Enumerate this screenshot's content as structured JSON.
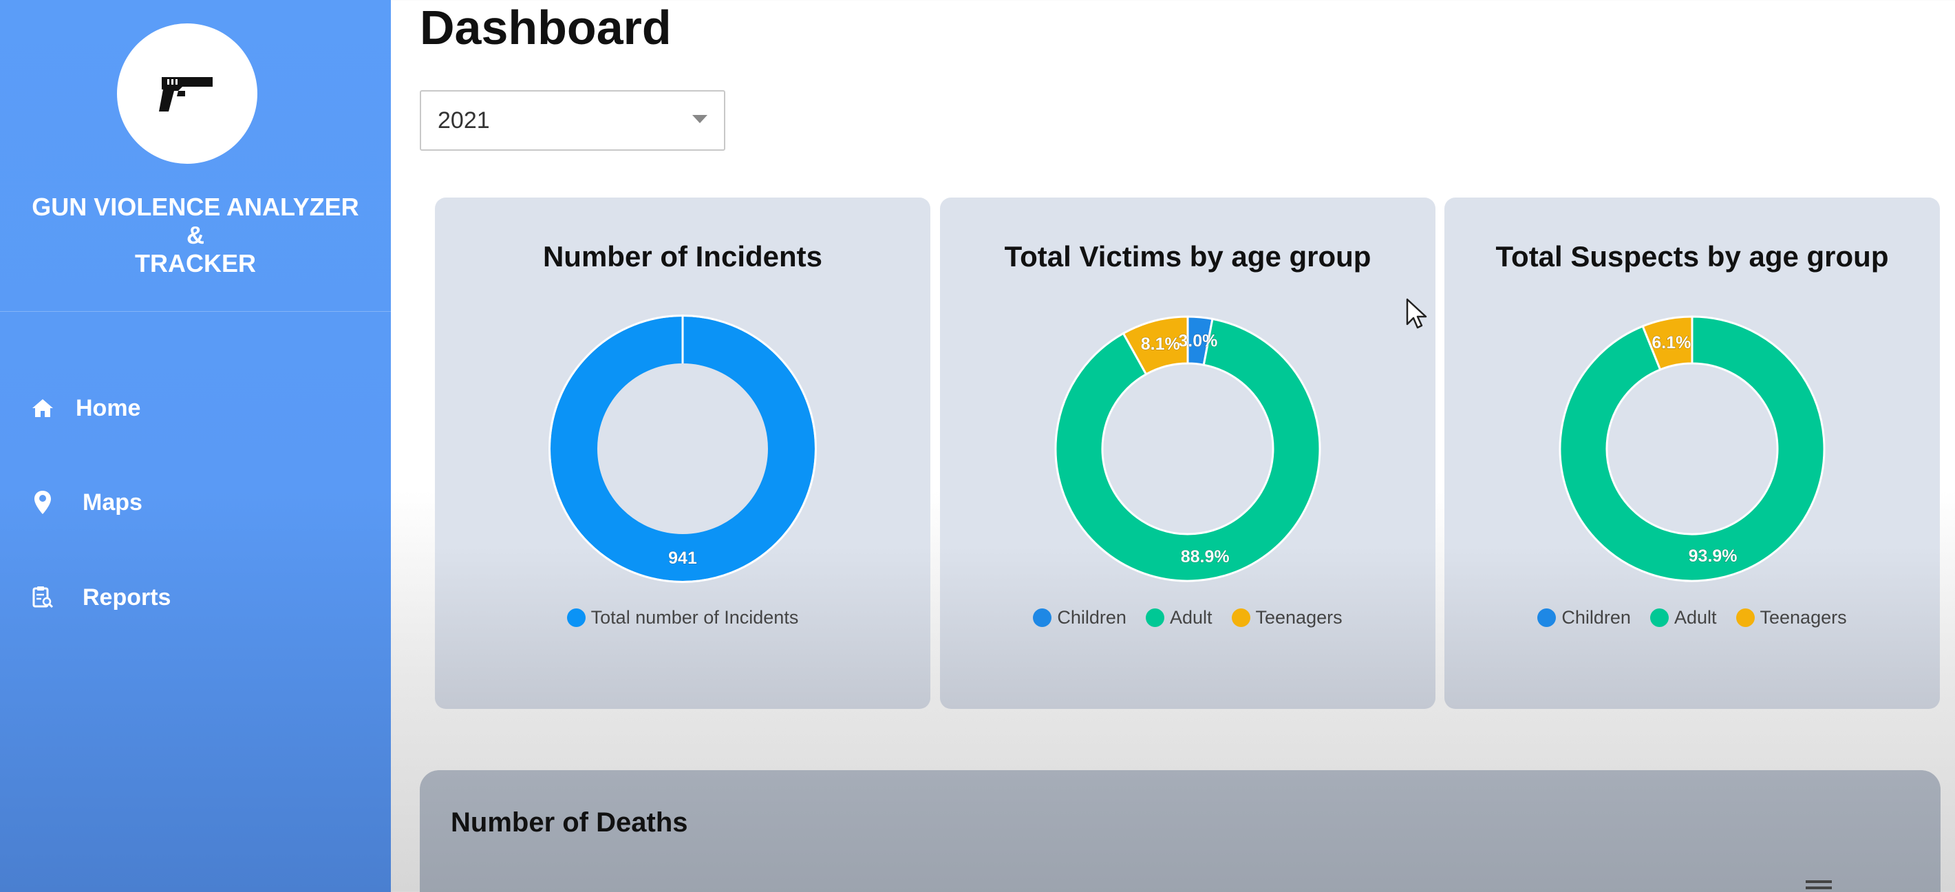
{
  "sidebar": {
    "brand_line1": "GUN VIOLENCE ANALYZER",
    "brand_line2": "&",
    "brand_line3": "TRACKER",
    "logo_icon": "pistol-icon",
    "items": [
      {
        "label": "Home",
        "icon": "home-icon"
      },
      {
        "label": "Maps",
        "icon": "map-pin-icon"
      },
      {
        "label": "Reports",
        "icon": "report-icon"
      }
    ]
  },
  "main": {
    "title": "Dashboard",
    "year_select": {
      "value": "2021"
    }
  },
  "colors": {
    "sidebar": "#5a9af5",
    "incidents": "#0b93f6",
    "children": "#1e88e5",
    "adult": "#00c895",
    "teenagers": "#f4b10b",
    "card": "#dce2ec"
  },
  "chart_data": [
    {
      "type": "pie",
      "title": "Number of Incidents",
      "categories": [
        "Total number of Incidents"
      ],
      "values": [
        941
      ],
      "data_labels": [
        "941"
      ],
      "colors": [
        "#0b93f6"
      ],
      "legend": "bottom"
    },
    {
      "type": "pie",
      "title": "Total Victims by age group",
      "categories": [
        "Children",
        "Adult",
        "Teenagers"
      ],
      "values": [
        3.0,
        88.9,
        8.1
      ],
      "data_labels": [
        "3.0%",
        "88.9%",
        "8.1%"
      ],
      "colors": [
        "#1e88e5",
        "#00c895",
        "#f4b10b"
      ],
      "legend": "bottom"
    },
    {
      "type": "pie",
      "title": "Total Suspects by age group",
      "categories": [
        "Children",
        "Adult",
        "Teenagers"
      ],
      "values": [
        0,
        93.9,
        6.1
      ],
      "data_labels": [
        "",
        "93.9%",
        "6.1%"
      ],
      "colors": [
        "#1e88e5",
        "#00c895",
        "#f4b10b"
      ],
      "legend": "bottom"
    }
  ],
  "deaths_panel": {
    "title": "Number of Deaths"
  }
}
